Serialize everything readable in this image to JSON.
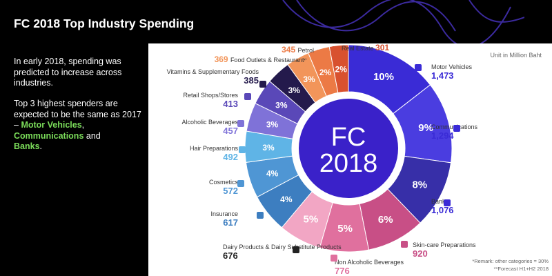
{
  "slide": {
    "title": "FC 2018 Top Industry Spending",
    "paragraph1": "In early 2018, spending was predicted to increase across industries.",
    "paragraph2_prefix": "Top 3 highest spenders are expected to be the same as 2017 – ",
    "highlight1": "Motor Vehicles",
    "comma": ",",
    "highlight2": "Communications",
    "and_text": " and",
    "highlight3": "Banks",
    "period": ".",
    "highlight_color": "#7bdc5a"
  },
  "chart_data": {
    "type": "pie",
    "center_line1": "FC",
    "center_line2": "2018",
    "unit_note": "Unit in Million Baht",
    "remark1": "*Remark: other categories = 30%",
    "remark2": "**Forecast H1+H2 2018",
    "slices": [
      {
        "name": "Motor Vehicles",
        "value": 1473,
        "pct_label": "10%",
        "color": "#3a2bd6",
        "icon": "car-icon"
      },
      {
        "name": "Communications",
        "value": 1294,
        "pct_label": "9%",
        "color": "#4a3de0",
        "icon": "chat-bubble-icon"
      },
      {
        "name": "Banks",
        "value": 1076,
        "pct_label": "8%",
        "color": "#372fa8",
        "icon": "bank-icon"
      },
      {
        "name": "Skin-care Preparations",
        "value": 920,
        "pct_label": "6%",
        "color": "#c84f86",
        "icon": "mask-icon"
      },
      {
        "name": "Non Alcoholic Beverages",
        "value": 776,
        "pct_label": "5%",
        "color": "#e0709e",
        "icon": "drink-icon"
      },
      {
        "name": "Dairy Products & Dairy Substitute Products",
        "value": 676,
        "pct_label": "5%",
        "color": "#f2a6c4",
        "icon": "milk-icon"
      },
      {
        "name": "Insurance",
        "value": 617,
        "pct_label": "4%",
        "color": "#3d7ec0",
        "icon": "shield-icon"
      },
      {
        "name": "Cosmetics",
        "value": 572,
        "pct_label": "4%",
        "color": "#4f96d4",
        "icon": "lipstick-icon"
      },
      {
        "name": "Hair Preparations",
        "value": 492,
        "pct_label": "3%",
        "color": "#5fb4e6",
        "icon": "hair-icon"
      },
      {
        "name": "Alcoholic Beverages",
        "value": 457,
        "pct_label": "3%",
        "color": "#7f72d8",
        "icon": "beer-icon"
      },
      {
        "name": "Retail Shops/Stores",
        "value": 413,
        "pct_label": "3%",
        "color": "#5a48b8",
        "icon": "store-icon"
      },
      {
        "name": "Vitamins & Supplementary Foods",
        "value": 385,
        "pct_label": "3%",
        "color": "#241a4c",
        "icon": "pill-icon"
      },
      {
        "name": "Food Outlets & Restaurants",
        "value": 369,
        "pct_label": "3%",
        "color": "#f2955a",
        "icon": "dot-icon"
      },
      {
        "name": "Petrol",
        "value": 345,
        "pct_label": "2%",
        "color": "#ec7a45",
        "icon": "dot-icon"
      },
      {
        "name": "Real Estate",
        "value": 301,
        "pct_label": "2%",
        "color": "#d8512f",
        "icon": "dot-icon"
      }
    ]
  }
}
